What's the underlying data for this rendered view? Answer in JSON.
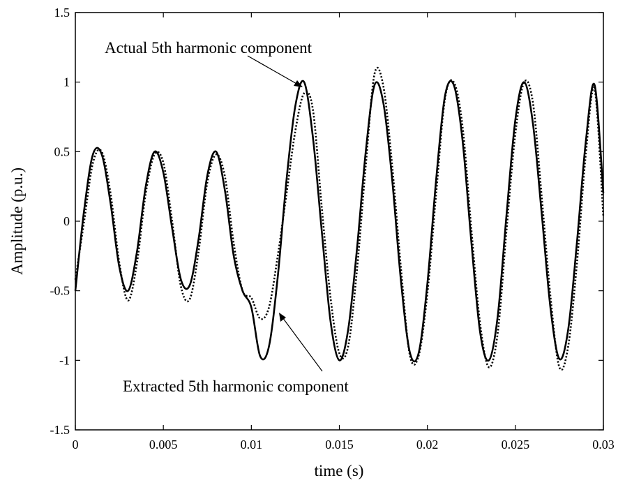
{
  "chart_data": {
    "type": "line",
    "title": "",
    "xlabel": "time (s)",
    "ylabel": "Amplitude (p.u.)",
    "xlim": [
      0,
      0.03
    ],
    "ylim": [
      -1.5,
      1.5
    ],
    "grid": false,
    "legend": "none",
    "x_ticks": [
      0,
      0.005,
      0.01,
      0.015,
      0.02,
      0.025,
      0.03
    ],
    "x_tick_labels": [
      "0",
      "0.005",
      "0.01",
      "0.015",
      "0.02",
      "0.025",
      "0.03"
    ],
    "y_ticks": [
      -1.5,
      -1,
      -0.5,
      0,
      0.5,
      1,
      1.5
    ],
    "y_tick_labels": [
      "-1.5",
      "-1",
      "-0.5",
      "0",
      "0.5",
      "1",
      "1.5"
    ],
    "series": [
      {
        "line_style": "solid",
        "color": "#000000",
        "x": [
          0,
          0.0005,
          0.001,
          0.0015,
          0.002,
          0.0025,
          0.003,
          0.0035,
          0.004,
          0.0045,
          0.005,
          0.0055,
          0.006,
          0.0065,
          0.007,
          0.0075,
          0.008,
          0.0085,
          0.009,
          0.0095,
          0.01,
          0.0105,
          0.011,
          0.0115,
          0.012,
          0.0125,
          0.013,
          0.0135,
          0.014,
          0.0145,
          0.015,
          0.0155,
          0.016,
          0.0165,
          0.017,
          0.0175,
          0.018,
          0.0185,
          0.019,
          0.0195,
          0.02,
          0.0205,
          0.021,
          0.0215,
          0.022,
          0.0225,
          0.023,
          0.0235,
          0.024,
          0.0245,
          0.025,
          0.0255,
          0.026,
          0.0265,
          0.027,
          0.0275,
          0.028,
          0.0285,
          0.029,
          0.0295,
          0.03
        ],
        "y": [
          -0.5,
          0.08,
          0.48,
          0.48,
          0.13,
          -0.33,
          -0.5,
          -0.22,
          0.25,
          0.5,
          0.35,
          -0.05,
          -0.42,
          -0.46,
          -0.13,
          0.33,
          0.5,
          0.22,
          -0.25,
          -0.5,
          -0.62,
          -0.97,
          -0.9,
          -0.4,
          0.3,
          0.83,
          1.0,
          0.6,
          -0.07,
          -0.72,
          -1.0,
          -0.78,
          -0.2,
          0.5,
          0.98,
          0.85,
          0.3,
          -0.43,
          -0.94,
          -0.95,
          -0.45,
          0.3,
          0.9,
          0.98,
          0.58,
          -0.15,
          -0.8,
          -1.0,
          -0.68,
          0.05,
          0.73,
          1.0,
          0.7,
          0.05,
          -0.63,
          -0.99,
          -0.78,
          -0.15,
          0.57,
          0.98,
          0.2
        ]
      },
      {
        "line_style": "dotted",
        "color": "#000000",
        "x": [
          0,
          0.0005,
          0.001,
          0.0015,
          0.002,
          0.0025,
          0.003,
          0.0035,
          0.004,
          0.0045,
          0.005,
          0.0055,
          0.006,
          0.0065,
          0.007,
          0.0075,
          0.008,
          0.0085,
          0.009,
          0.0095,
          0.01,
          0.0105,
          0.011,
          0.0115,
          0.012,
          0.0125,
          0.013,
          0.0135,
          0.014,
          0.0145,
          0.015,
          0.0155,
          0.016,
          0.0165,
          0.017,
          0.0175,
          0.018,
          0.0185,
          0.019,
          0.0195,
          0.02,
          0.0205,
          0.021,
          0.0215,
          0.022,
          0.0225,
          0.023,
          0.0235,
          0.024,
          0.0245,
          0.025,
          0.0255,
          0.026,
          0.0265,
          0.027,
          0.0275,
          0.028,
          0.0285,
          0.029,
          0.0295,
          0.03
        ],
        "y": [
          -0.42,
          0.0,
          0.42,
          0.5,
          0.2,
          -0.3,
          -0.57,
          -0.3,
          0.2,
          0.48,
          0.42,
          0.0,
          -0.47,
          -0.56,
          -0.22,
          0.28,
          0.48,
          0.32,
          -0.16,
          -0.5,
          -0.55,
          -0.7,
          -0.62,
          -0.25,
          0.2,
          0.65,
          0.92,
          0.8,
          0.1,
          -0.55,
          -0.95,
          -0.9,
          -0.35,
          0.4,
          1.06,
          0.97,
          0.4,
          -0.34,
          -0.96,
          -0.97,
          -0.52,
          0.2,
          0.88,
          1.0,
          0.68,
          -0.06,
          -0.74,
          -1.05,
          -0.8,
          -0.06,
          0.63,
          1.0,
          0.85,
          0.17,
          -0.55,
          -1.05,
          -0.9,
          -0.3,
          0.48,
          0.95,
          0.03
        ]
      }
    ],
    "annotations": [
      {
        "text": "Actual 5th harmonic component",
        "points_to": {
          "x": 0.0133,
          "y": 0.97
        }
      },
      {
        "text": "Extracted 5th harmonic component",
        "points_to": {
          "x": 0.0116,
          "y": -0.65
        }
      }
    ]
  }
}
